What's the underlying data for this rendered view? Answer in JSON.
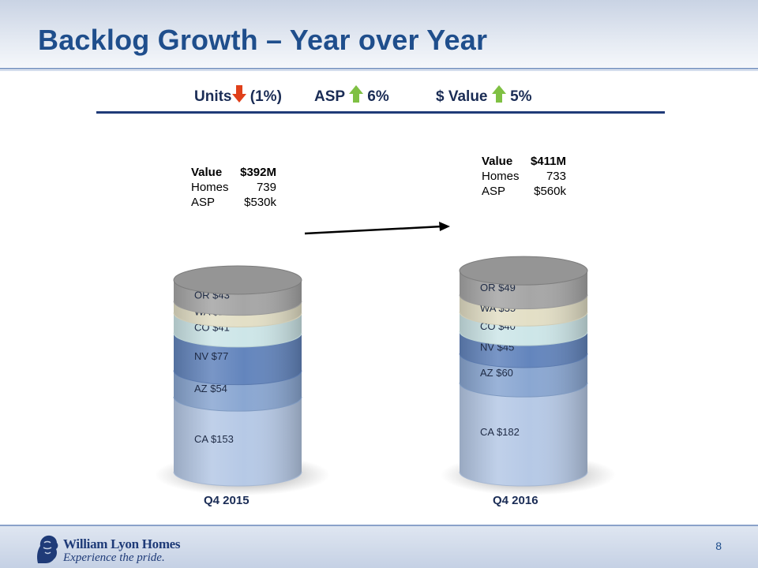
{
  "title": "Backlog Growth – Year over Year",
  "summary": {
    "units_label": "Units",
    "units_change": "(1%)",
    "asp_label": "ASP",
    "asp_change": "6%",
    "value_label": "$ Value",
    "value_change": "5%",
    "down_color": "#e0401a",
    "up_color": "#7fc043"
  },
  "chart_data": {
    "type": "bar",
    "stacked": true,
    "categories": [
      "Q4 2015",
      "Q4 2016"
    ],
    "series": [
      {
        "name": "CA",
        "values": [
          153,
          182
        ],
        "color": "#b6c9e6"
      },
      {
        "name": "AZ",
        "values": [
          54,
          60
        ],
        "color": "#8aa7d2"
      },
      {
        "name": "NV",
        "values": [
          77,
          45
        ],
        "color": "#6385bd"
      },
      {
        "name": "CO",
        "values": [
          41,
          40
        ],
        "color": "#cde6e8"
      },
      {
        "name": "WA",
        "values": [
          24,
          35
        ],
        "color": "#e3dfc6"
      },
      {
        "name": "OR",
        "values": [
          43,
          49
        ],
        "color": "#a6a6a6"
      }
    ],
    "data_labels": [
      [
        "CA  $153",
        "AZ  $54",
        "NV  $77",
        "CO  $41",
        "WA  $24",
        "OR  $43"
      ],
      [
        "CA  $182",
        "AZ  $60",
        "NV  $45",
        "CO  $40",
        "WA  $35",
        "OR  $49"
      ]
    ],
    "title": "",
    "xlabel": "",
    "ylabel": ""
  },
  "info": [
    {
      "value_label": "Value",
      "value": "$392M",
      "homes_label": "Homes",
      "homes": "739",
      "asp_label": "ASP",
      "asp": "$530k"
    },
    {
      "value_label": "Value",
      "value": "$411M",
      "homes_label": "Homes",
      "homes": "733",
      "asp_label": "ASP",
      "asp": "$560k"
    }
  ],
  "footer": {
    "company": "William Lyon Homes",
    "tagline": "Experience the pride.",
    "page_number": "8"
  }
}
